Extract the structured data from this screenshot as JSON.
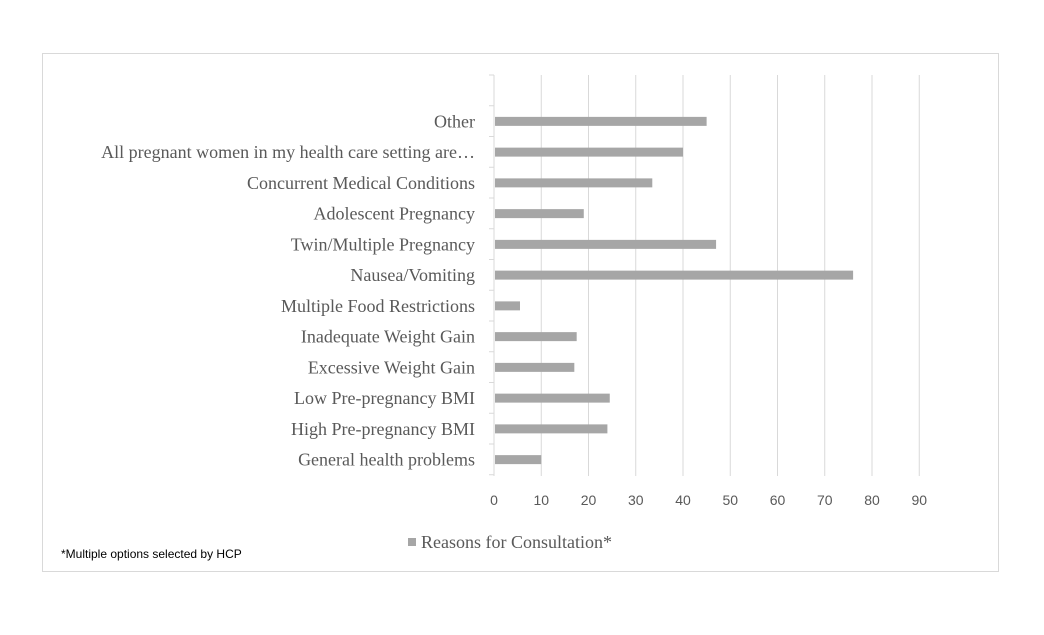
{
  "chart_data": {
    "type": "bar",
    "orientation": "horizontal",
    "categories": [
      "General health problems",
      "High Pre-pregnancy BMI",
      "Low Pre-pregnancy BMI",
      "Excessive Weight Gain",
      "Inadequate Weight Gain",
      "Multiple Food Restrictions",
      "Nausea/Vomiting",
      "Twin/Multiple Pregnancy",
      "Adolescent Pregnancy",
      "Concurrent Medical Conditions",
      "All pregnant women in my health care setting are…",
      "Other"
    ],
    "series": [
      {
        "name": "Reasons for Consultation*",
        "values": [
          10,
          24,
          24.5,
          17,
          17.5,
          5.5,
          76,
          47,
          19,
          33.5,
          40,
          45
        ]
      }
    ],
    "xlim": [
      0,
      90
    ],
    "xticks": [
      0,
      10,
      20,
      30,
      40,
      50,
      60,
      70,
      80,
      90
    ],
    "grid": "vertical",
    "legend_position": "bottom",
    "bar_color": "#a6a6a6",
    "grid_color": "#d9d9d9"
  },
  "footnote": "*Multiple options selected by HCP"
}
